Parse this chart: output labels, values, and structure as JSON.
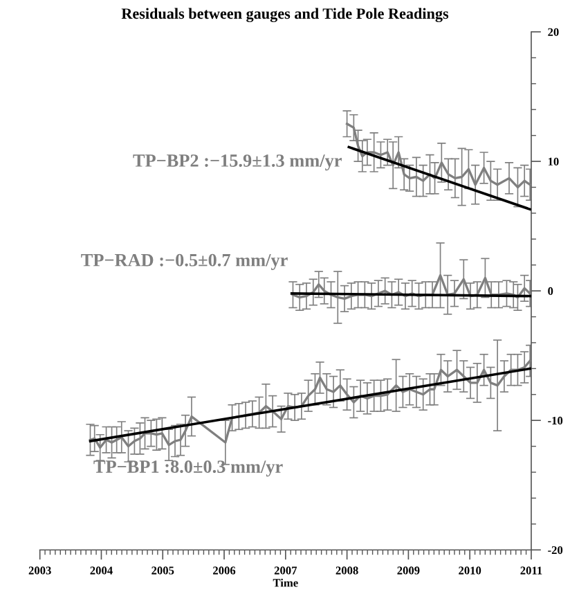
{
  "chart_data": {
    "type": "line",
    "title": "Residuals between gauges and Tide Pole Readings",
    "xlabel": "Time",
    "xlim": [
      2003,
      2011
    ],
    "xticks": [
      2003,
      2004,
      2005,
      2006,
      2007,
      2008,
      2009,
      2010,
      2011
    ],
    "ylim": [
      -20,
      20
    ],
    "yticks": [
      -20,
      -10,
      0,
      10,
      20
    ],
    "grid": false,
    "legend": false,
    "marker": "none",
    "line_style": "solid",
    "series": [
      {
        "name": "TP−BP2 :−15.9±1.3 mm/yr",
        "color": "#7f7f7f",
        "x": [
          2008.0,
          2008.11,
          2008.18,
          2008.25,
          2008.33,
          2008.44,
          2008.55,
          2008.66,
          2008.75,
          2008.84,
          2008.93,
          2009.02,
          2009.13,
          2009.24,
          2009.35,
          2009.43,
          2009.54,
          2009.65,
          2009.76,
          2009.87,
          2009.98,
          2010.09,
          2010.23,
          2010.34,
          2010.45,
          2010.64,
          2010.78,
          2010.89,
          2010.98
        ],
        "values": [
          12.9,
          12.6,
          11.2,
          10.4,
          10.7,
          10.7,
          10.5,
          10.7,
          9.7,
          10.7,
          9.0,
          8.7,
          8.8,
          8.5,
          9.0,
          8.7,
          9.9,
          9.0,
          8.7,
          8.8,
          9.4,
          8.2,
          9.5,
          8.5,
          8.2,
          8.7,
          8.0,
          8.5,
          8.2
        ],
        "errors": [
          1.0,
          1.0,
          1.2,
          1.2,
          1.0,
          1.5,
          1.0,
          1.0,
          1.8,
          1.2,
          1.2,
          1.0,
          1.5,
          1.2,
          1.5,
          1.2,
          1.5,
          1.2,
          1.5,
          2.2,
          1.5,
          1.5,
          1.2,
          1.5,
          1.2,
          1.2,
          1.5,
          1.2,
          1.2
        ]
      },
      {
        "name": "TP−RAD :−0.5±0.7 mm/yr",
        "color": "#7f7f7f",
        "x": [
          2007.12,
          2007.23,
          2007.34,
          2007.45,
          2007.54,
          2007.63,
          2007.74,
          2007.85,
          2007.96,
          2008.07,
          2008.18,
          2008.29,
          2008.4,
          2008.51,
          2008.62,
          2008.73,
          2008.84,
          2008.95,
          2009.06,
          2009.17,
          2009.28,
          2009.39,
          2009.52,
          2009.64,
          2009.75,
          2009.9,
          2010.01,
          2010.12,
          2010.25,
          2010.35,
          2010.47,
          2010.6,
          2010.71,
          2010.78,
          2010.89,
          2010.98
        ],
        "values": [
          -0.3,
          -0.5,
          -0.4,
          -0.1,
          0.5,
          0.0,
          -0.3,
          -0.5,
          -0.6,
          -0.4,
          -0.3,
          -0.3,
          -0.4,
          -0.2,
          0.0,
          -0.3,
          -0.1,
          -0.4,
          -0.2,
          -0.4,
          -0.3,
          -0.3,
          1.2,
          -0.3,
          -0.2,
          0.9,
          -0.4,
          -0.3,
          1.0,
          -0.3,
          -0.3,
          -0.2,
          -0.3,
          -0.5,
          0.2,
          -0.2
        ],
        "errors": [
          1.0,
          1.0,
          1.0,
          1.0,
          1.0,
          1.0,
          1.0,
          2.0,
          1.0,
          1.0,
          1.0,
          1.0,
          1.0,
          1.0,
          1.0,
          1.0,
          1.0,
          1.0,
          1.0,
          1.0,
          1.0,
          1.0,
          2.5,
          1.5,
          1.0,
          1.5,
          1.0,
          1.0,
          1.5,
          1.0,
          1.0,
          1.0,
          1.0,
          1.0,
          1.0,
          1.0
        ]
      },
      {
        "name": "TP−BP1 :8.0±0.3 mm/yr",
        "color": "#7f7f7f",
        "x": [
          2003.82,
          2003.89,
          2003.98,
          2004.08,
          2004.17,
          2004.25,
          2004.33,
          2004.44,
          2004.54,
          2004.63,
          2004.71,
          2004.81,
          2004.9,
          2004.99,
          2005.1,
          2005.2,
          2005.29,
          2005.37,
          2005.47,
          2006.02,
          2006.13,
          2006.24,
          2006.35,
          2006.46,
          2006.57,
          2006.68,
          2006.79,
          2006.93,
          2007.04,
          2007.15,
          2007.26,
          2007.37,
          2007.48,
          2007.56,
          2007.67,
          2007.78,
          2007.89,
          2008.0,
          2008.11,
          2008.22,
          2008.33,
          2008.44,
          2008.55,
          2008.66,
          2008.8,
          2008.91,
          2009.02,
          2009.13,
          2009.24,
          2009.35,
          2009.42,
          2009.53,
          2009.64,
          2009.79,
          2009.9,
          2010.01,
          2010.12,
          2010.23,
          2010.34,
          2010.45,
          2010.56,
          2010.67,
          2010.78,
          2010.89,
          2010.98
        ],
        "values": [
          -11.5,
          -11.4,
          -12.1,
          -11.5,
          -11.7,
          -11.5,
          -11.3,
          -12.0,
          -11.6,
          -11.4,
          -11.0,
          -11.0,
          -11.1,
          -11.0,
          -11.9,
          -11.6,
          -11.5,
          -10.8,
          -9.7,
          -11.7,
          -9.8,
          -9.7,
          -9.6,
          -9.5,
          -9.4,
          -8.9,
          -9.3,
          -9.9,
          -8.9,
          -9.0,
          -8.9,
          -8.1,
          -7.6,
          -6.7,
          -7.6,
          -7.8,
          -7.3,
          -8.0,
          -8.6,
          -8.1,
          -8.3,
          -8.1,
          -8.1,
          -8.0,
          -7.3,
          -7.8,
          -7.6,
          -7.8,
          -8.0,
          -7.6,
          -7.6,
          -6.1,
          -6.6,
          -6.1,
          -6.6,
          -7.1,
          -7.1,
          -6.1,
          -7.1,
          -7.3,
          -6.6,
          -6.1,
          -6.1,
          -5.9,
          -5.4
        ],
        "errors": [
          1.2,
          1.0,
          1.0,
          1.0,
          1.2,
          1.0,
          1.2,
          1.2,
          1.0,
          1.2,
          1.2,
          1.0,
          1.2,
          1.2,
          1.2,
          1.2,
          1.2,
          1.2,
          1.5,
          1.7,
          1.0,
          1.0,
          1.0,
          1.0,
          1.2,
          1.7,
          1.2,
          1.0,
          1.0,
          1.0,
          1.0,
          1.2,
          1.2,
          1.2,
          1.2,
          1.2,
          1.2,
          1.2,
          1.2,
          1.2,
          1.2,
          1.2,
          1.2,
          1.2,
          2.0,
          1.2,
          1.2,
          1.2,
          1.2,
          1.2,
          1.2,
          1.2,
          1.2,
          1.5,
          1.2,
          1.2,
          1.5,
          1.2,
          1.2,
          3.5,
          1.2,
          1.2,
          1.2,
          1.2,
          1.2
        ]
      },
      {
        "color": "#000000",
        "x": [
          2008.03,
          2010.98
        ],
        "values": [
          11.1,
          6.3
        ]
      },
      {
        "color": "#000000",
        "x": [
          2007.1,
          2010.98
        ],
        "values": [
          -0.2,
          -0.4
        ]
      },
      {
        "color": "#000000",
        "x": [
          2003.82,
          2010.98
        ],
        "values": [
          -11.6,
          -6.0
        ]
      }
    ]
  }
}
